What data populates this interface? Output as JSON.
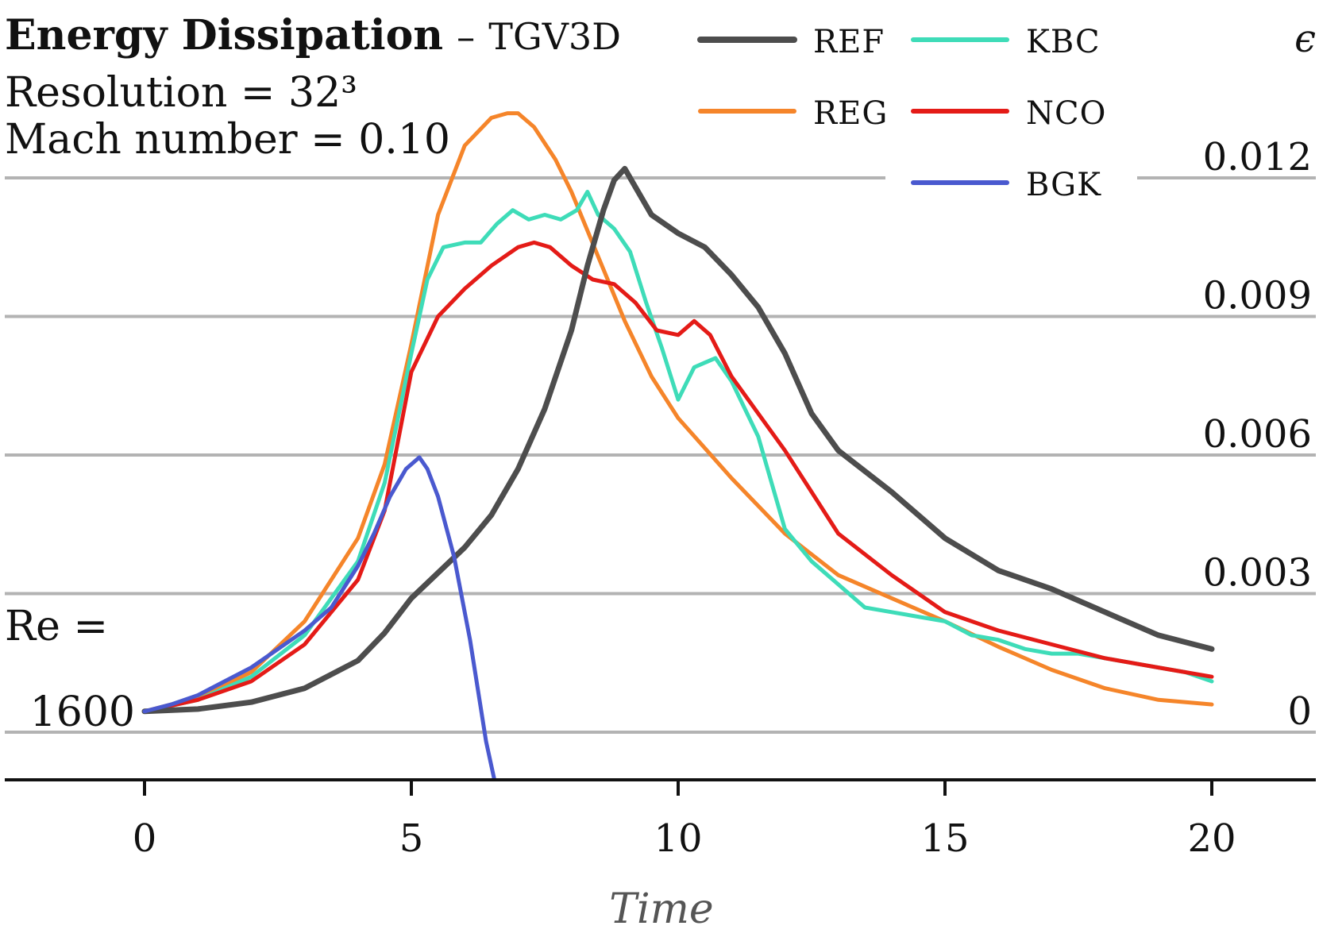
{
  "chart_data": {
    "type": "line",
    "title": "Energy Dissipation",
    "subtitle": "TGV3D",
    "title_separator": "–",
    "resolution_label": "Resolution = 32³",
    "mach_label": "Mach number = 0.10",
    "re_label": "Re =",
    "re_value": "1600",
    "xlabel": "Time",
    "ylabel": "ϵ",
    "xlim": [
      -2.6,
      22
    ],
    "ylim": [
      -0.001,
      0.0139
    ],
    "xticks": [
      0,
      5,
      10,
      15,
      20
    ],
    "xtick_labels": [
      "0",
      "5",
      "10",
      "15",
      "20"
    ],
    "yticks": [
      0,
      0.003,
      0.006,
      0.009,
      0.012
    ],
    "ytick_labels": [
      "0",
      "0.003",
      "0.006",
      "0.009",
      "0.012"
    ],
    "grid": true,
    "legend_position": "top-right",
    "series": [
      {
        "name": "REF",
        "color": "#4d4d4d",
        "width": 7,
        "x": [
          0,
          1,
          2,
          3,
          4,
          4.5,
          5,
          5.5,
          6,
          6.5,
          7,
          7.5,
          8,
          8.3,
          8.6,
          8.8,
          9.0,
          9.2,
          9.5,
          10,
          10.5,
          11,
          11.5,
          12,
          12.5,
          13,
          14,
          15,
          16,
          17,
          18,
          19,
          20
        ],
        "y": [
          0.00045,
          0.0005,
          0.00065,
          0.00095,
          0.00155,
          0.00215,
          0.0029,
          0.00345,
          0.004,
          0.0047,
          0.0057,
          0.007,
          0.0087,
          0.0101,
          0.0113,
          0.01195,
          0.0122,
          0.0118,
          0.0112,
          0.0108,
          0.0105,
          0.0099,
          0.0092,
          0.0082,
          0.0069,
          0.0061,
          0.0052,
          0.0042,
          0.0035,
          0.0031,
          0.0026,
          0.0021,
          0.0018
        ]
      },
      {
        "name": "REG",
        "color": "#f5852a",
        "width": 5,
        "x": [
          0,
          1,
          2,
          3,
          4,
          4.5,
          5,
          5.5,
          6,
          6.5,
          6.8,
          7,
          7.3,
          7.7,
          8,
          8.5,
          9,
          9.5,
          10,
          11,
          12,
          13,
          14,
          15,
          16,
          17,
          18,
          19,
          20
        ],
        "y": [
          0.00045,
          0.00075,
          0.0013,
          0.0024,
          0.0042,
          0.0058,
          0.0084,
          0.0112,
          0.0127,
          0.0133,
          0.0134,
          0.0134,
          0.0131,
          0.0124,
          0.0117,
          0.0103,
          0.0089,
          0.0077,
          0.0068,
          0.0055,
          0.0043,
          0.0034,
          0.0029,
          0.0024,
          0.00185,
          0.00135,
          0.00095,
          0.0007,
          0.0006
        ]
      },
      {
        "name": "KBC",
        "color": "#3edcb8",
        "width": 5,
        "x": [
          0,
          1,
          2,
          3,
          4,
          4.5,
          5,
          5.3,
          5.6,
          6,
          6.3,
          6.6,
          6.9,
          7.2,
          7.5,
          7.8,
          8.1,
          8.3,
          8.5,
          8.8,
          9.1,
          9.4,
          9.7,
          10.0,
          10.3,
          10.7,
          11.0,
          11.5,
          12,
          12.5,
          13,
          13.5,
          14,
          14.5,
          15,
          15.5,
          16,
          16.5,
          17,
          17.5,
          18,
          18.5,
          19,
          19.5,
          20
        ],
        "y": [
          0.00045,
          0.0007,
          0.0012,
          0.0021,
          0.0037,
          0.0054,
          0.0082,
          0.0098,
          0.0105,
          0.0106,
          0.0106,
          0.011,
          0.0113,
          0.0111,
          0.0112,
          0.0111,
          0.0113,
          0.0117,
          0.0112,
          0.0109,
          0.0104,
          0.0093,
          0.0083,
          0.0072,
          0.0079,
          0.0081,
          0.0076,
          0.0064,
          0.0044,
          0.0037,
          0.0032,
          0.0027,
          0.0026,
          0.0025,
          0.0024,
          0.0021,
          0.002,
          0.0018,
          0.0017,
          0.0017,
          0.0016,
          0.0015,
          0.0014,
          0.0013,
          0.0011
        ]
      },
      {
        "name": "NCO",
        "color": "#e41b17",
        "width": 5,
        "x": [
          0,
          1,
          2,
          3,
          4,
          4.5,
          5,
          5.5,
          6,
          6.5,
          7,
          7.3,
          7.6,
          8,
          8.4,
          8.8,
          9.2,
          9.6,
          10,
          10.3,
          10.6,
          11,
          11.5,
          12,
          12.5,
          13,
          14,
          15,
          16,
          17,
          18,
          19,
          20
        ],
        "y": [
          0.00045,
          0.0007,
          0.0011,
          0.0019,
          0.0033,
          0.0048,
          0.0078,
          0.009,
          0.0096,
          0.0101,
          0.0105,
          0.0106,
          0.0105,
          0.0101,
          0.0098,
          0.0097,
          0.0093,
          0.0087,
          0.0086,
          0.0089,
          0.0086,
          0.0077,
          0.0069,
          0.0061,
          0.0052,
          0.0043,
          0.0034,
          0.0026,
          0.0022,
          0.0019,
          0.0016,
          0.0014,
          0.0012
        ]
      },
      {
        "name": "BGK",
        "color": "#4a59cf",
        "width": 5,
        "x": [
          0,
          0.5,
          1,
          1.5,
          2,
          2.5,
          3,
          3.5,
          4,
          4.3,
          4.6,
          4.9,
          5.15,
          5.3,
          5.5,
          5.8,
          6.1,
          6.4,
          6.55
        ],
        "y": [
          0.00045,
          0.0006,
          0.0008,
          0.0011,
          0.0014,
          0.0018,
          0.0022,
          0.0027,
          0.0036,
          0.0043,
          0.0051,
          0.0057,
          0.00595,
          0.0057,
          0.0051,
          0.0038,
          0.002,
          -0.0002,
          -0.001
        ]
      }
    ]
  }
}
